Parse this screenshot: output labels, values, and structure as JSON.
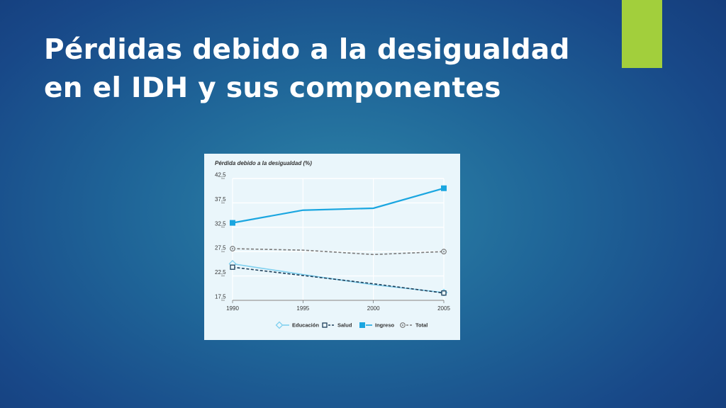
{
  "slide": {
    "title_line1": "Pérdidas debido a la desigualdad",
    "title_line2": "en el IDH y sus componentes",
    "accent_color": "#a2cf3c"
  },
  "chart_data": {
    "type": "line",
    "title": "Pérdida debido a la desigualdad (%)",
    "x": [
      1990,
      1995,
      2000,
      2005
    ],
    "x_tick_labels": [
      "1990",
      "1995",
      "2000",
      "2005"
    ],
    "ylim": [
      17.5,
      42.5
    ],
    "y_ticks": [
      17.5,
      22.5,
      27.5,
      32.5,
      37.5,
      42.5
    ],
    "y_tick_labels": [
      "17,5",
      "22,5",
      "27,5",
      "32,5",
      "37,5",
      "42,5"
    ],
    "grid": true,
    "legend_position": "bottom",
    "series": [
      {
        "name": "Educación",
        "values": [
          25.0,
          22.8,
          20.7,
          19.1
        ],
        "color": "#7fd0ef",
        "dash": "solid",
        "marker": "diamond-open"
      },
      {
        "name": "Salud",
        "values": [
          24.3,
          22.6,
          20.9,
          19.0
        ],
        "color": "#1d3f5a",
        "dash": "dashed",
        "marker": "square-open"
      },
      {
        "name": "Ingreso",
        "values": [
          33.4,
          36.0,
          36.4,
          40.5
        ],
        "color": "#1aa6e0",
        "dash": "solid",
        "marker": "square"
      },
      {
        "name": "Total",
        "values": [
          28.1,
          27.8,
          26.9,
          27.5
        ],
        "color": "#7a7a7a",
        "dash": "dashed",
        "marker": "circle-open"
      }
    ]
  }
}
